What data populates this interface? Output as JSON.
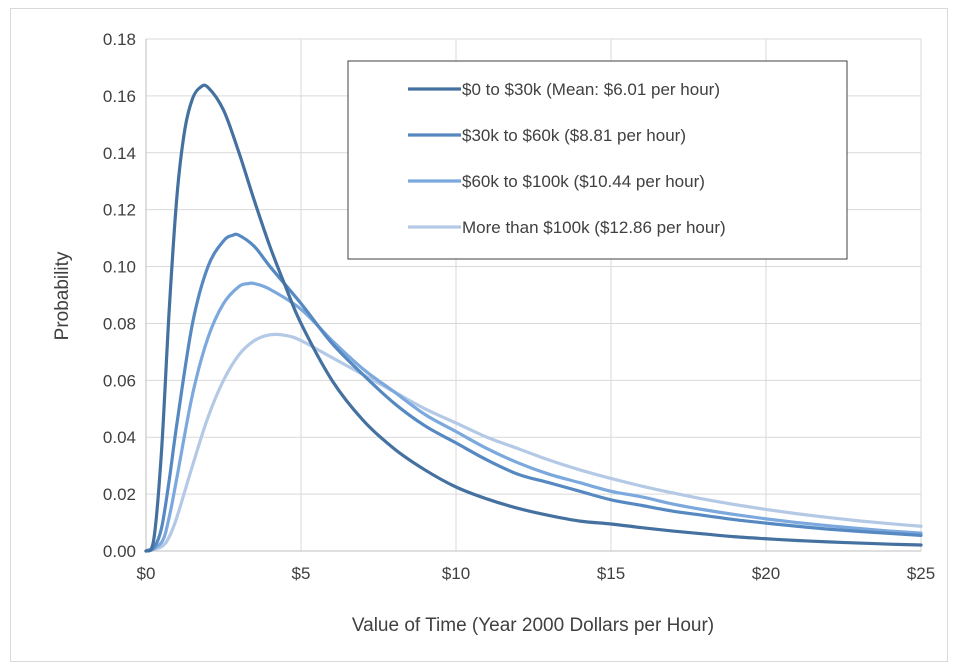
{
  "chart_data": {
    "type": "line",
    "title": "",
    "xlabel": "Value of Time (Year 2000 Dollars per Hour)",
    "ylabel": "Probability",
    "xlim": [
      0,
      25
    ],
    "ylim": [
      0,
      0.18
    ],
    "grid": true,
    "legend_position": "top-right",
    "x_ticks": [
      {
        "value": 0,
        "label": "$0"
      },
      {
        "value": 5,
        "label": "$5"
      },
      {
        "value": 10,
        "label": "$10"
      },
      {
        "value": 15,
        "label": "$15"
      },
      {
        "value": 20,
        "label": "$20"
      },
      {
        "value": 25,
        "label": "$25"
      }
    ],
    "y_ticks": [
      {
        "value": 0,
        "label": "0.00"
      },
      {
        "value": 0.02,
        "label": "0.02"
      },
      {
        "value": 0.04,
        "label": "0.04"
      },
      {
        "value": 0.06,
        "label": "0.06"
      },
      {
        "value": 0.08,
        "label": "0.08"
      },
      {
        "value": 0.1,
        "label": "0.10"
      },
      {
        "value": 0.12,
        "label": "0.12"
      },
      {
        "value": 0.14,
        "label": "0.14"
      },
      {
        "value": 0.16,
        "label": "0.16"
      },
      {
        "value": 0.18,
        "label": "0.18"
      }
    ],
    "series": [
      {
        "name": "$0 to $30k (Mean: $6.01 per hour)",
        "color": "#44719f",
        "points": [
          [
            0,
            0
          ],
          [
            0.25,
            0.004
          ],
          [
            0.5,
            0.035
          ],
          [
            0.75,
            0.085
          ],
          [
            1,
            0.125
          ],
          [
            1.25,
            0.148
          ],
          [
            1.5,
            0.159
          ],
          [
            1.75,
            0.163
          ],
          [
            2,
            0.163
          ],
          [
            2.5,
            0.155
          ],
          [
            3,
            0.14
          ],
          [
            3.5,
            0.123
          ],
          [
            4,
            0.107
          ],
          [
            4.5,
            0.093
          ],
          [
            5,
            0.08
          ],
          [
            6,
            0.06
          ],
          [
            7,
            0.046
          ],
          [
            8,
            0.036
          ],
          [
            9,
            0.0285
          ],
          [
            10,
            0.0225
          ],
          [
            11,
            0.0183
          ],
          [
            12,
            0.015
          ],
          [
            13,
            0.0125
          ],
          [
            14,
            0.0105
          ],
          [
            15,
            0.0095
          ],
          [
            16,
            0.0082
          ],
          [
            17,
            0.007
          ],
          [
            18,
            0.006
          ],
          [
            19,
            0.005
          ],
          [
            20,
            0.0043
          ],
          [
            21,
            0.0037
          ],
          [
            22,
            0.0032
          ],
          [
            23,
            0.0028
          ],
          [
            24,
            0.0024
          ],
          [
            25,
            0.0021
          ]
        ]
      },
      {
        "name": "$30k to $60k ($8.81 per hour)",
        "color": "#5689c1",
        "points": [
          [
            0,
            0
          ],
          [
            0.25,
            0.001
          ],
          [
            0.5,
            0.008
          ],
          [
            0.75,
            0.025
          ],
          [
            1,
            0.045
          ],
          [
            1.5,
            0.08
          ],
          [
            2,
            0.1
          ],
          [
            2.5,
            0.109
          ],
          [
            2.8,
            0.111
          ],
          [
            3,
            0.111
          ],
          [
            3.5,
            0.107
          ],
          [
            4,
            0.1
          ],
          [
            5,
            0.087
          ],
          [
            6,
            0.073
          ],
          [
            7,
            0.062
          ],
          [
            8,
            0.052
          ],
          [
            9,
            0.044
          ],
          [
            10,
            0.038
          ],
          [
            11,
            0.032
          ],
          [
            12,
            0.027
          ],
          [
            13,
            0.024
          ],
          [
            14,
            0.021
          ],
          [
            15,
            0.018
          ],
          [
            16,
            0.016
          ],
          [
            17,
            0.014
          ],
          [
            18,
            0.0125
          ],
          [
            19,
            0.011
          ],
          [
            20,
            0.0098
          ],
          [
            21,
            0.0087
          ],
          [
            22,
            0.0077
          ],
          [
            23,
            0.0069
          ],
          [
            24,
            0.0062
          ],
          [
            25,
            0.0055
          ]
        ]
      },
      {
        "name": "$60k to $100k ($10.44 per hour)",
        "color": "#7ba8dd",
        "points": [
          [
            0,
            0
          ],
          [
            0.5,
            0.003
          ],
          [
            0.75,
            0.012
          ],
          [
            1,
            0.026
          ],
          [
            1.5,
            0.055
          ],
          [
            2,
            0.075
          ],
          [
            2.5,
            0.087
          ],
          [
            3,
            0.093
          ],
          [
            3.3,
            0.094
          ],
          [
            3.5,
            0.094
          ],
          [
            4,
            0.092
          ],
          [
            5,
            0.085
          ],
          [
            6,
            0.074
          ],
          [
            7,
            0.064
          ],
          [
            8,
            0.056
          ],
          [
            9,
            0.048
          ],
          [
            10,
            0.042
          ],
          [
            11,
            0.036
          ],
          [
            12,
            0.031
          ],
          [
            13,
            0.027
          ],
          [
            14,
            0.024
          ],
          [
            15,
            0.021
          ],
          [
            16,
            0.019
          ],
          [
            17,
            0.0165
          ],
          [
            18,
            0.0145
          ],
          [
            19,
            0.0128
          ],
          [
            20,
            0.0113
          ],
          [
            21,
            0.01
          ],
          [
            22,
            0.0089
          ],
          [
            23,
            0.0079
          ],
          [
            24,
            0.007
          ],
          [
            25,
            0.0063
          ]
        ]
      },
      {
        "name": "More than $100k ($12.86 per hour)",
        "color": "#b4c9e6",
        "points": [
          [
            0,
            0
          ],
          [
            0.5,
            0.0015
          ],
          [
            0.75,
            0.005
          ],
          [
            1,
            0.012
          ],
          [
            1.5,
            0.03
          ],
          [
            2,
            0.047
          ],
          [
            2.5,
            0.06
          ],
          [
            3,
            0.069
          ],
          [
            3.5,
            0.074
          ],
          [
            4,
            0.076
          ],
          [
            4.5,
            0.0758
          ],
          [
            5,
            0.074
          ],
          [
            6,
            0.068
          ],
          [
            7,
            0.062
          ],
          [
            8,
            0.056
          ],
          [
            9,
            0.05
          ],
          [
            10,
            0.045
          ],
          [
            11,
            0.04
          ],
          [
            12,
            0.036
          ],
          [
            13,
            0.032
          ],
          [
            14,
            0.0285
          ],
          [
            15,
            0.0255
          ],
          [
            16,
            0.0228
          ],
          [
            17,
            0.0204
          ],
          [
            18,
            0.0182
          ],
          [
            19,
            0.0163
          ],
          [
            20,
            0.0146
          ],
          [
            21,
            0.0131
          ],
          [
            22,
            0.0118
          ],
          [
            23,
            0.0106
          ],
          [
            24,
            0.0096
          ],
          [
            25,
            0.0087
          ]
        ]
      }
    ]
  }
}
